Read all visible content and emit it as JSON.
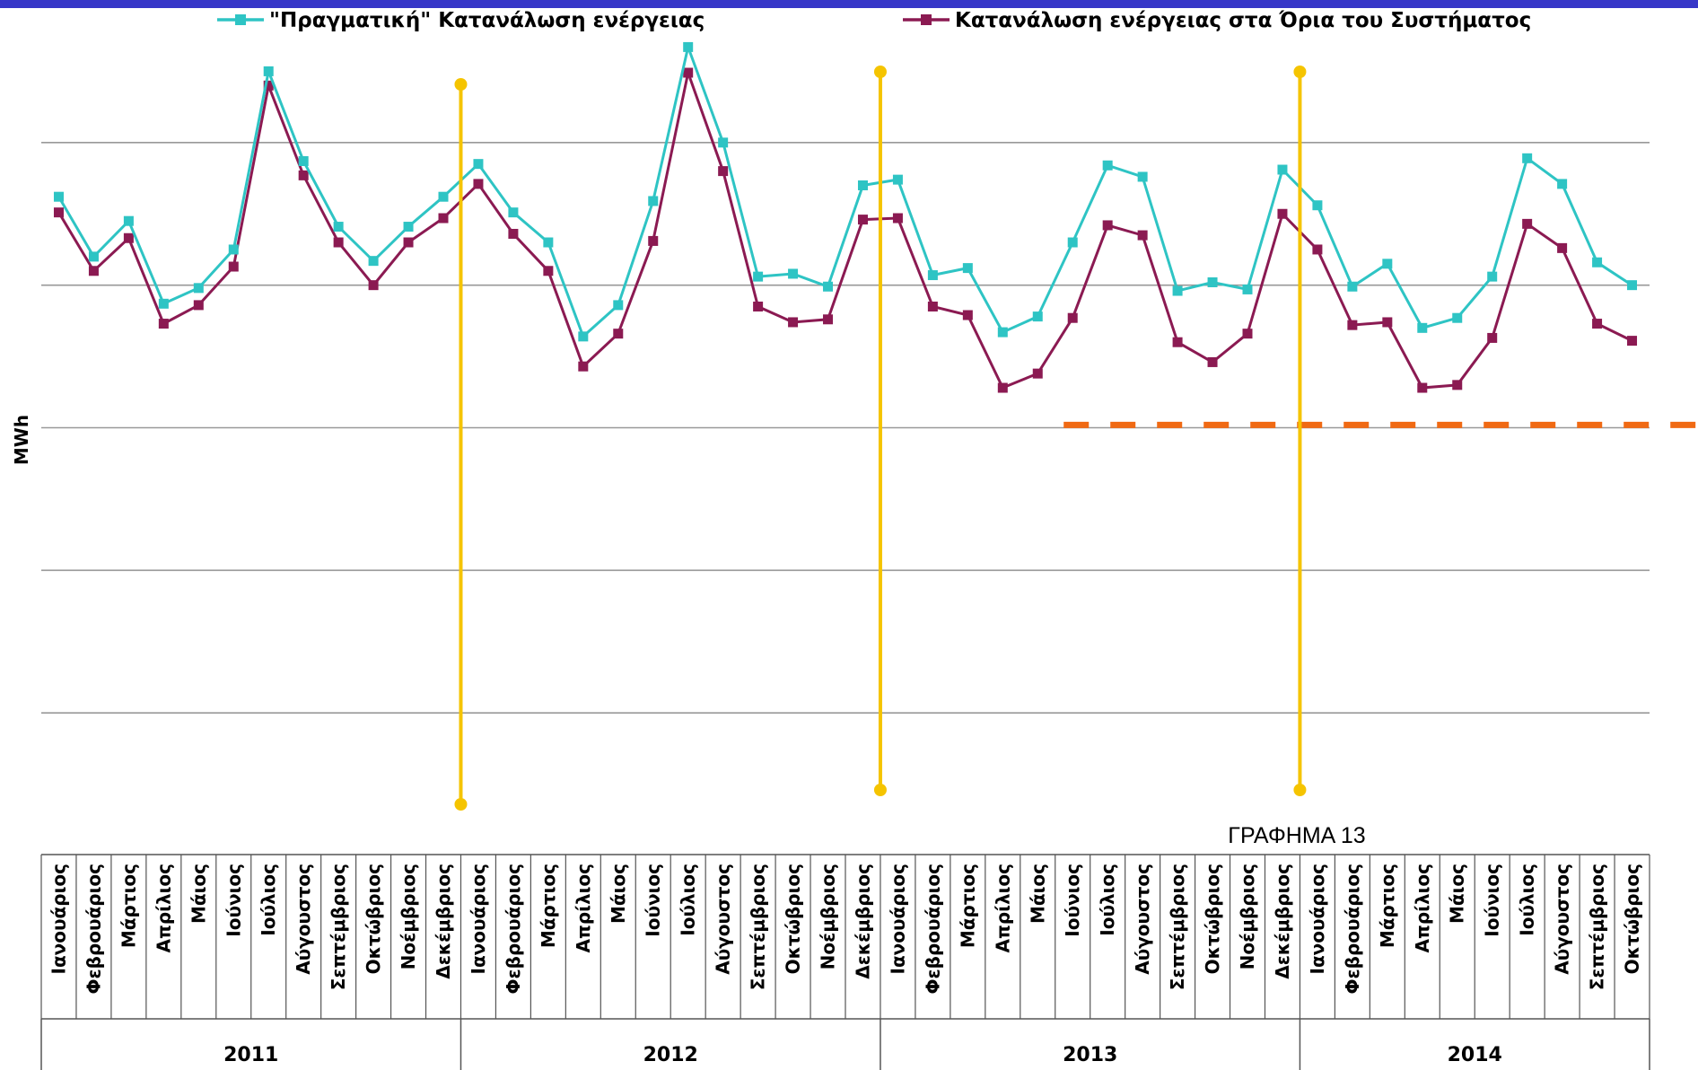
{
  "colors": {
    "series_real": "#2ec4c4",
    "series_system": "#8b1a52",
    "markers": "#f5c400",
    "dashed_line": "#f06a14",
    "grid": "#999999",
    "top_bar": "#3737c8"
  },
  "caption": "ΓΡΑΦΗΜΑ 13",
  "chart_data": {
    "type": "line",
    "ylabel": "MWh",
    "xlabel": "",
    "ylim": [
      0,
      6
    ],
    "grid": true,
    "legend_position": "top",
    "categories": [
      "Ιανουάριος",
      "Φεβρουάριος",
      "Μάρτιος",
      "Απρίλιος",
      "Μάιος",
      "Ιούνιος",
      "Ιούλιος",
      "Αύγουστος",
      "Σεπτέμβριος",
      "Οκτώβριος",
      "Νοέμβριος",
      "Δεκέμβριος",
      "Ιανουάριος",
      "Φεβρουάριος",
      "Μάρτιος",
      "Απρίλιος",
      "Μάιος",
      "Ιούνιος",
      "Ιούλιος",
      "Αύγουστος",
      "Σεπτέμβριος",
      "Οκτώβριος",
      "Νοέμβριος",
      "Δεκέμβριος",
      "Ιανουάριος",
      "Φεβρουάριος",
      "Μάρτιος",
      "Απρίλιος",
      "Μάιος",
      "Ιούνιος",
      "Ιούλιος",
      "Αύγουστος",
      "Σεπτέμβριος",
      "Οκτώβριος",
      "Νοέμβριος",
      "Δεκέμβριος",
      "Ιανουάριος",
      "Φεβρουάριος",
      "Μάρτιος",
      "Απρίλιος",
      "Μάιος",
      "Ιούνιος",
      "Ιούλιος",
      "Αύγουστος",
      "Σεπτέμβριος",
      "Οκτώβριος"
    ],
    "years": [
      {
        "label": "2011",
        "months": 12
      },
      {
        "label": "2012",
        "months": 12
      },
      {
        "label": "2013",
        "months": 12
      },
      {
        "label": "2014",
        "months": 10
      }
    ],
    "series": [
      {
        "name": "\"Πραγματική\" Κατανάλωση ενέργειας",
        "color": "#2ec4c4",
        "values": [
          4.62,
          4.2,
          4.45,
          3.87,
          3.98,
          4.25,
          5.5,
          4.87,
          4.41,
          4.17,
          4.41,
          4.62,
          4.85,
          4.51,
          4.3,
          3.64,
          3.86,
          4.59,
          5.67,
          5.0,
          4.06,
          4.08,
          3.99,
          4.7,
          4.74,
          4.07,
          4.12,
          3.67,
          3.78,
          4.3,
          4.84,
          4.76,
          3.96,
          4.02,
          3.97,
          4.81,
          4.56,
          3.99,
          4.15,
          3.7,
          3.77,
          4.06,
          4.89,
          4.71,
          4.16,
          4.0
        ]
      },
      {
        "name": "Κατανάλωση ενέργειας στα Όρια του Συστήματος",
        "color": "#8b1a52",
        "values": [
          4.51,
          4.1,
          4.33,
          3.73,
          3.86,
          4.13,
          5.4,
          4.77,
          4.3,
          4.0,
          4.3,
          4.47,
          4.71,
          4.36,
          4.1,
          3.43,
          3.66,
          4.31,
          5.49,
          4.8,
          3.85,
          3.74,
          3.76,
          4.46,
          4.47,
          3.85,
          3.79,
          3.28,
          3.38,
          3.77,
          4.42,
          4.35,
          3.6,
          3.46,
          3.66,
          4.5,
          4.25,
          3.72,
          3.74,
          3.28,
          3.3,
          3.63,
          4.43,
          4.26,
          3.73,
          3.61
        ]
      }
    ],
    "vertical_markers_after_month_index": [
      11,
      23,
      35
    ],
    "reference_line": {
      "value": 3.02,
      "start_index": 29
    }
  }
}
